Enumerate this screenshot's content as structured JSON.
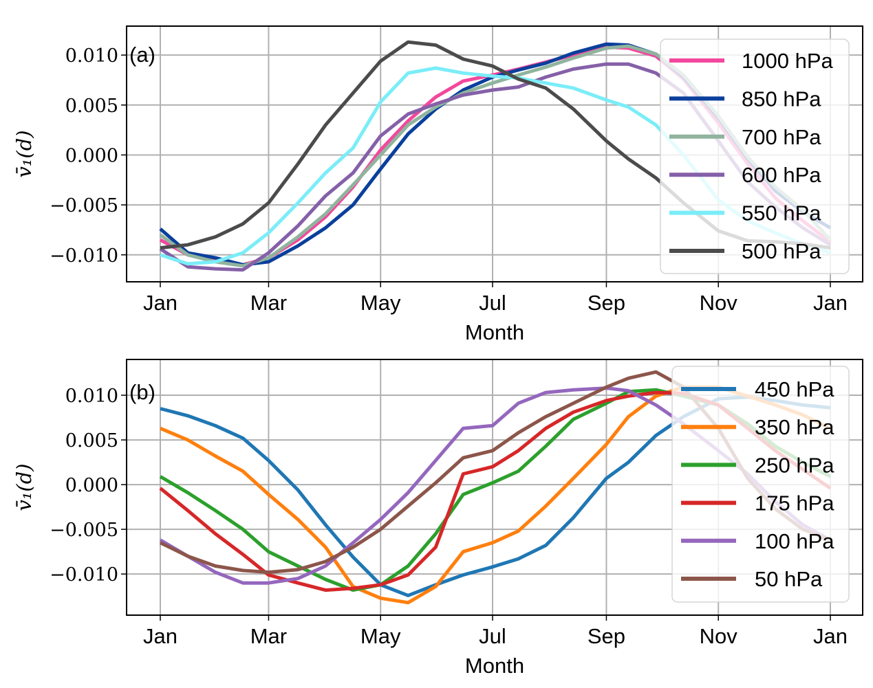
{
  "chart_data": [
    {
      "type": "line",
      "panel_label": "(a)",
      "xlabel": "Month",
      "ylabel": "v̄₁(d)",
      "xticks": [
        "Jan",
        "Mar",
        "May",
        "Jul",
        "Sep",
        "Nov",
        "Jan"
      ],
      "yticks": [
        "0.010",
        "0.005",
        "0.000",
        "−0.005",
        "−0.010"
      ],
      "ytick_values": [
        0.01,
        0.005,
        0.0,
        -0.005,
        -0.01
      ],
      "ylim": [
        -0.0127,
        0.0129
      ],
      "grid": true,
      "legend_position": "top-right",
      "x": [
        "01-01",
        "01-16",
        "01-31",
        "02-15",
        "03-01",
        "03-17",
        "04-01",
        "04-16",
        "05-01",
        "05-16",
        "05-31",
        "06-15",
        "07-01",
        "07-15",
        "07-30",
        "08-14",
        "09-01",
        "09-13",
        "09-28",
        "10-13",
        "11-01",
        "11-17",
        "12-02",
        "12-17",
        "12-31"
      ],
      "series": [
        {
          "name": "1000 hPa",
          "color": "#f2489d",
          "values": [
            -0.0085,
            -0.01,
            -0.0105,
            -0.011,
            -0.0103,
            -0.0085,
            -0.0062,
            -0.0032,
            0.0005,
            0.0034,
            0.0058,
            0.0074,
            0.008,
            0.0086,
            0.0093,
            0.01,
            0.0108,
            0.0107,
            0.0099,
            0.0076,
            0.0032,
            -0.0009,
            -0.0043,
            -0.0066,
            -0.0087
          ]
        },
        {
          "name": "850 hPa",
          "color": "#0a3f9c",
          "values": [
            -0.0074,
            -0.0098,
            -0.0103,
            -0.011,
            -0.0107,
            -0.0091,
            -0.0073,
            -0.005,
            -0.0014,
            0.0021,
            0.0046,
            0.0065,
            0.0078,
            0.0085,
            0.0092,
            0.0102,
            0.0111,
            0.011,
            0.0101,
            0.0078,
            0.0037,
            -0.0004,
            -0.0036,
            -0.0057,
            -0.0073
          ]
        },
        {
          "name": "700 hPa",
          "color": "#90b49e",
          "values": [
            -0.008,
            -0.01,
            -0.0107,
            -0.0111,
            -0.0103,
            -0.0082,
            -0.0059,
            -0.003,
            0.0,
            0.003,
            0.0048,
            0.0062,
            0.0072,
            0.008,
            0.0088,
            0.0097,
            0.0107,
            0.0109,
            0.0101,
            0.008,
            0.0039,
            -0.0002,
            -0.0032,
            -0.0055,
            -0.0085
          ]
        },
        {
          "name": "600 hPa",
          "color": "#8560a8",
          "values": [
            -0.0094,
            -0.0112,
            -0.0114,
            -0.0115,
            -0.0098,
            -0.0071,
            -0.0041,
            -0.0018,
            0.0019,
            0.0041,
            0.0051,
            0.006,
            0.0065,
            0.0068,
            0.0078,
            0.0086,
            0.0091,
            0.0091,
            0.0082,
            0.0062,
            0.0014,
            -0.0027,
            -0.0052,
            -0.0073,
            -0.009
          ]
        },
        {
          "name": "550 hPa",
          "color": "#7aedf8",
          "values": [
            -0.01,
            -0.0109,
            -0.0107,
            -0.0098,
            -0.0078,
            -0.0048,
            -0.0018,
            0.0007,
            0.0053,
            0.0082,
            0.0087,
            0.0082,
            0.0079,
            0.0077,
            0.0072,
            0.0067,
            0.0055,
            0.0048,
            0.003,
            0.0,
            -0.0045,
            -0.0066,
            -0.0078,
            -0.0089,
            -0.0098
          ]
        },
        {
          "name": "500 hPa",
          "color": "#4b4b4b",
          "values": [
            -0.0093,
            -0.009,
            -0.0082,
            -0.0069,
            -0.0048,
            -0.0009,
            0.003,
            0.0062,
            0.0094,
            0.0113,
            0.011,
            0.0096,
            0.0089,
            0.0076,
            0.0067,
            0.0046,
            0.0014,
            -0.0004,
            -0.0023,
            -0.0048,
            -0.0076,
            -0.0086,
            -0.0087,
            -0.0089,
            -0.0093
          ]
        }
      ]
    },
    {
      "type": "line",
      "panel_label": "(b)",
      "xlabel": "Month",
      "ylabel": "v̄₁(d)",
      "xticks": [
        "Jan",
        "Mar",
        "May",
        "Jul",
        "Sep",
        "Nov",
        "Jan"
      ],
      "yticks": [
        "0.010",
        "0.005",
        "0.000",
        "−0.005",
        "−0.010"
      ],
      "ytick_values": [
        0.01,
        0.005,
        0.0,
        -0.005,
        -0.01
      ],
      "ylim": [
        -0.0146,
        0.014
      ],
      "grid": true,
      "legend_position": "top-right",
      "x": [
        "01-01",
        "01-16",
        "01-31",
        "02-15",
        "03-01",
        "03-17",
        "04-01",
        "04-16",
        "05-01",
        "05-16",
        "05-31",
        "06-15",
        "07-01",
        "07-15",
        "07-30",
        "08-14",
        "09-01",
        "09-13",
        "09-28",
        "10-13",
        "11-01",
        "11-17",
        "12-02",
        "12-17",
        "12-31"
      ],
      "series": [
        {
          "name": "450 hPa",
          "color": "#1f77b4",
          "values": [
            0.0085,
            0.0077,
            0.0066,
            0.0052,
            0.0027,
            -0.0006,
            -0.0045,
            -0.0081,
            -0.0112,
            -0.0124,
            -0.0112,
            -0.0101,
            -0.0092,
            -0.0083,
            -0.0068,
            -0.0037,
            0.0007,
            0.0025,
            0.0055,
            0.0076,
            0.0096,
            0.0098,
            0.0094,
            0.0089,
            0.0086
          ]
        },
        {
          "name": "350 hPa",
          "color": "#ff7f0e",
          "values": [
            0.0063,
            0.005,
            0.0032,
            0.0015,
            -0.0011,
            -0.0039,
            -0.007,
            -0.0114,
            -0.0127,
            -0.0132,
            -0.0114,
            -0.0075,
            -0.0065,
            -0.0052,
            -0.0024,
            0.0007,
            0.0045,
            0.0076,
            0.0099,
            0.0109,
            0.0109,
            0.0099,
            0.0089,
            0.0078,
            0.0063
          ]
        },
        {
          "name": "250 hPa",
          "color": "#2ca02c",
          "values": [
            0.0009,
            -0.0009,
            -0.0029,
            -0.005,
            -0.0075,
            -0.0091,
            -0.0106,
            -0.0118,
            -0.0112,
            -0.0091,
            -0.0055,
            -0.0011,
            0.0002,
            0.0015,
            0.0043,
            0.0073,
            0.0091,
            0.0104,
            0.0106,
            0.0099,
            0.0089,
            0.0068,
            0.0043,
            0.0025,
            0.0009
          ]
        },
        {
          "name": "175 hPa",
          "color": "#d62728",
          "values": [
            -0.0004,
            -0.0029,
            -0.0055,
            -0.0078,
            -0.0101,
            -0.011,
            -0.0118,
            -0.0116,
            -0.0112,
            -0.0101,
            -0.007,
            0.0012,
            0.002,
            0.0038,
            0.0063,
            0.0081,
            0.0094,
            0.0099,
            0.0103,
            0.0102,
            0.0089,
            0.0063,
            0.0038,
            0.0017,
            -0.0004
          ]
        },
        {
          "name": "100 hPa",
          "color": "#9467bd",
          "values": [
            -0.0062,
            -0.008,
            -0.0098,
            -0.011,
            -0.011,
            -0.0105,
            -0.0091,
            -0.0065,
            -0.0039,
            -0.0009,
            0.0027,
            0.0063,
            0.0066,
            0.0091,
            0.0103,
            0.0106,
            0.0108,
            0.0105,
            0.0089,
            0.0068,
            0.0038,
            0.0012,
            -0.0019,
            -0.0045,
            -0.0062
          ]
        },
        {
          "name": "50 hPa",
          "color": "#8c564b",
          "values": [
            -0.0065,
            -0.008,
            -0.0091,
            -0.0096,
            -0.0098,
            -0.0095,
            -0.0086,
            -0.007,
            -0.005,
            -0.0024,
            0.0002,
            0.003,
            0.0038,
            0.0058,
            0.0076,
            0.0091,
            0.0109,
            0.0119,
            0.0126,
            0.0109,
            0.0063,
            0.0007,
            -0.0027,
            -0.005,
            -0.0062
          ]
        }
      ]
    }
  ]
}
